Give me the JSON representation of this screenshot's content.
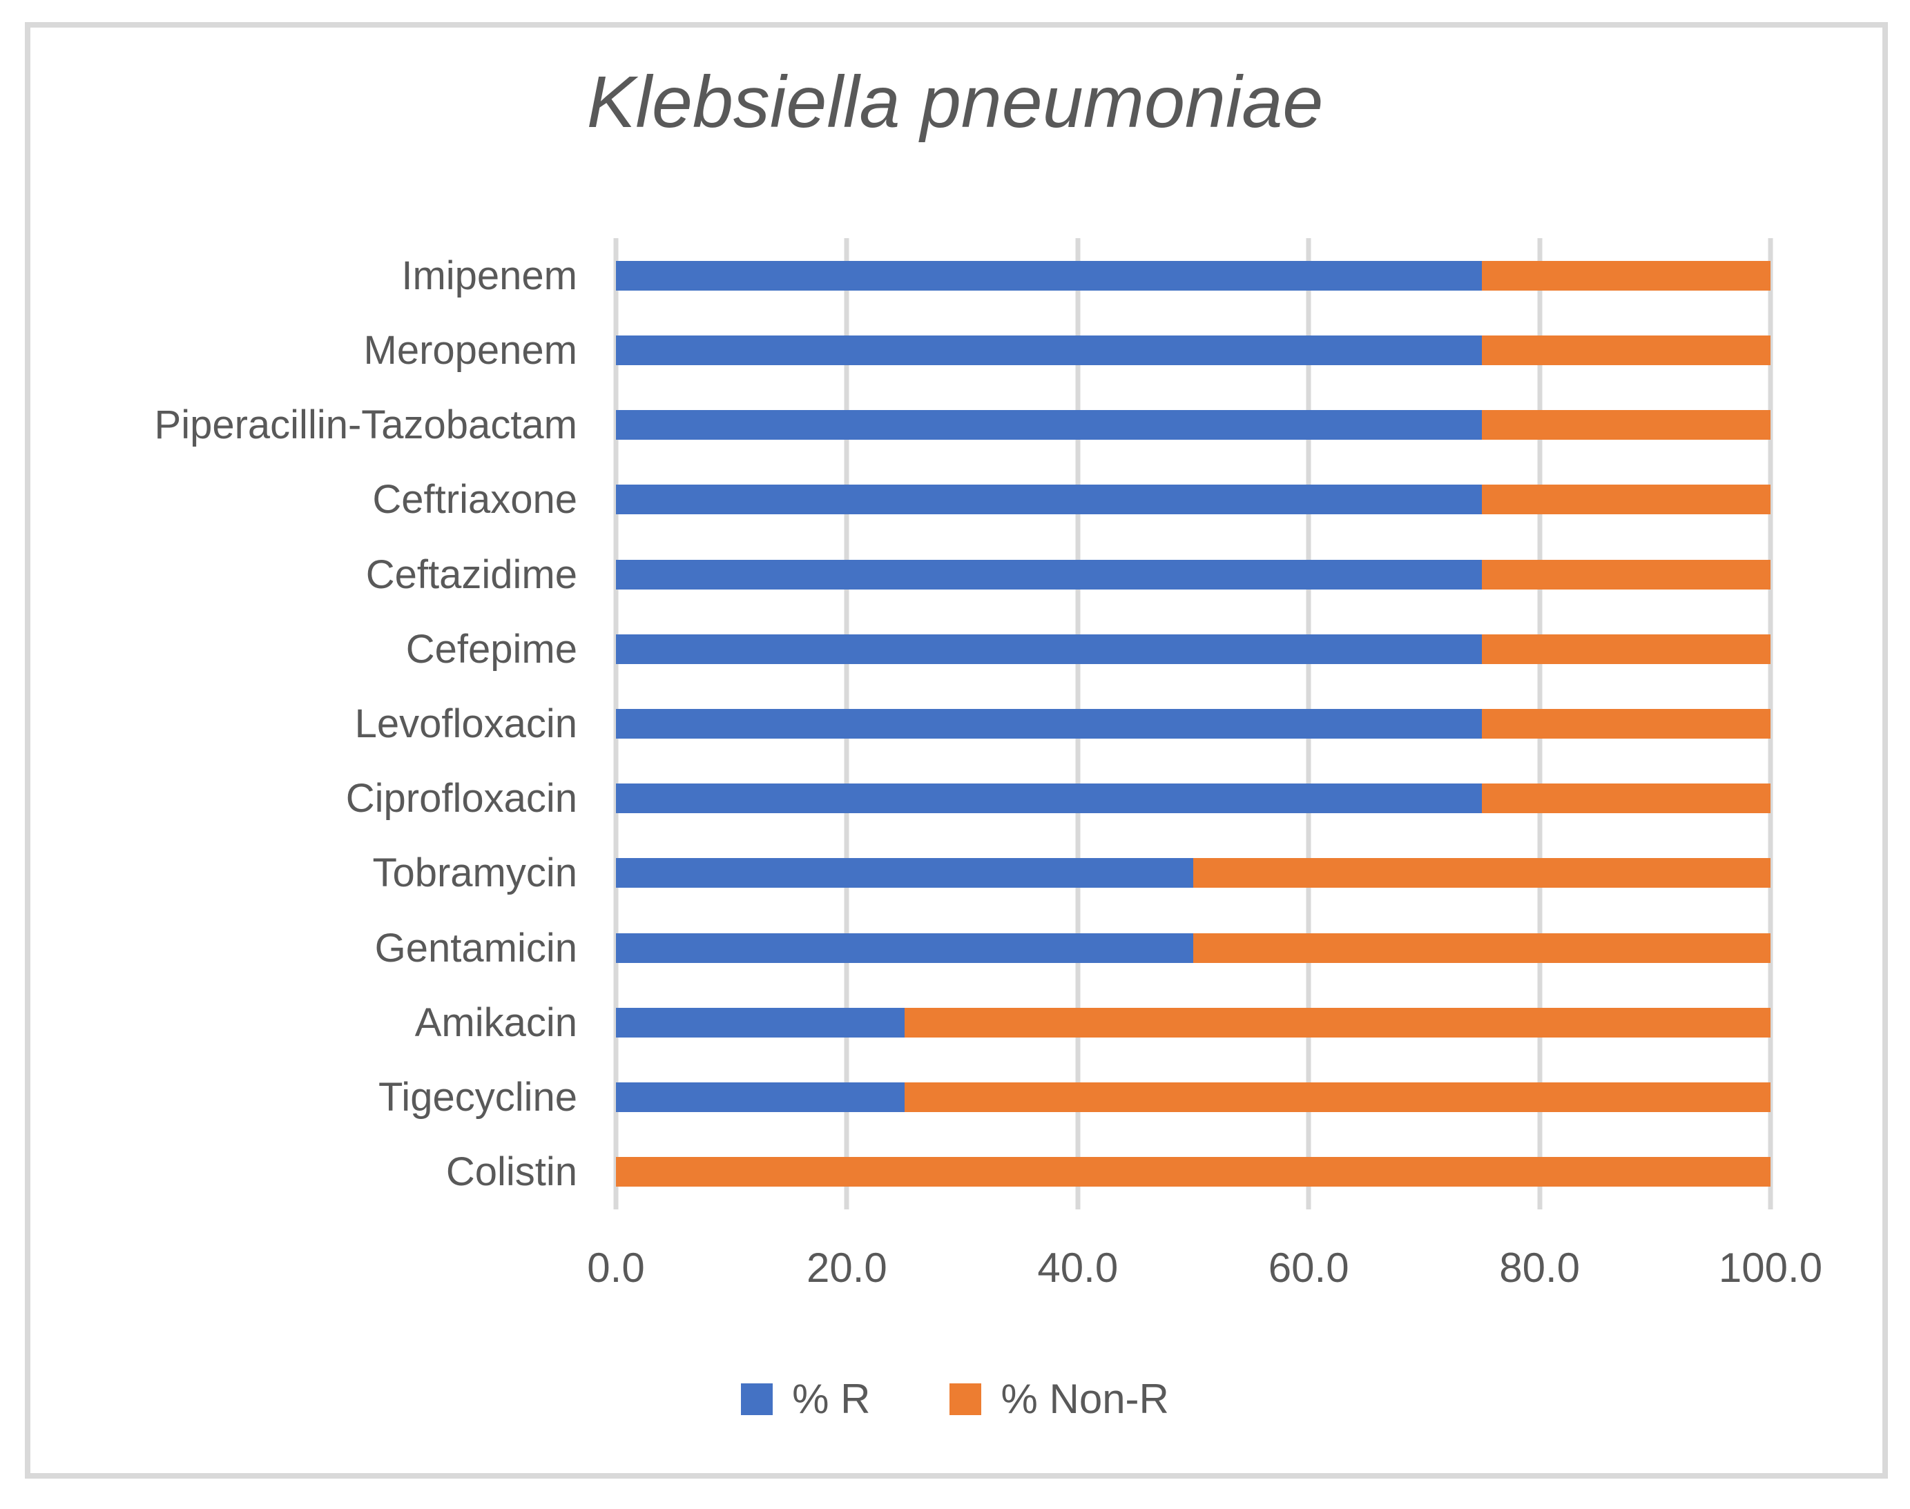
{
  "chart_data": {
    "type": "bar",
    "orientation": "horizontal",
    "stacked": true,
    "title": "Klebsiella pneumoniae",
    "categories": [
      "Imipenem",
      "Meropenem",
      "Piperacillin-Tazobactam",
      "Ceftriaxone",
      "Ceftazidime",
      "Cefepime",
      "Levofloxacin",
      "Ciprofloxacin",
      "Tobramycin",
      "Gentamicin",
      "Amikacin",
      "Tigecycline",
      "Colistin"
    ],
    "series": [
      {
        "name": "% R",
        "color": "#4472C4",
        "values": [
          75.0,
          75.0,
          75.0,
          75.0,
          75.0,
          75.0,
          75.0,
          75.0,
          50.0,
          50.0,
          25.0,
          25.0,
          0.0
        ]
      },
      {
        "name": "% Non-R",
        "color": "#ED7D31",
        "values": [
          25.0,
          25.0,
          25.0,
          25.0,
          25.0,
          25.0,
          25.0,
          25.0,
          50.0,
          50.0,
          75.0,
          75.0,
          100.0
        ]
      }
    ],
    "xlim": [
      0,
      100
    ],
    "x_tick_values": [
      0,
      20,
      40,
      60,
      80,
      100
    ],
    "x_tick_labels": [
      "0.0",
      "20.0",
      "40.0",
      "60.0",
      "80.0",
      "100.0"
    ],
    "grid": "vertical-only",
    "legend_position": "bottom"
  },
  "styles": {
    "gridline_color": "#d9d9d9",
    "frame_border_color": "#d9d9d9",
    "text_color": "#595959",
    "series_colors": [
      "#4472C4",
      "#ED7D31"
    ]
  }
}
